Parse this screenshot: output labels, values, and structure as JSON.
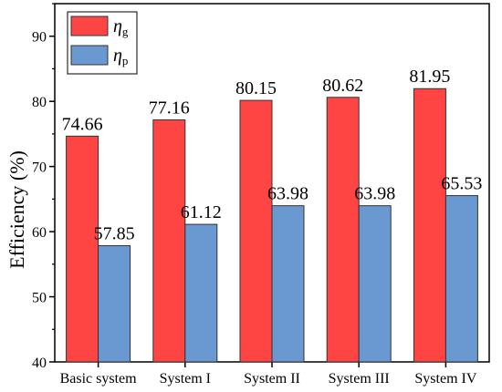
{
  "chart_data": {
    "type": "bar",
    "categories": [
      "Basic system",
      "System I",
      "System II",
      "System III",
      "System IV"
    ],
    "series": [
      {
        "name": "ηg",
        "symbol": "η",
        "subscript": "g",
        "color": "#ff4444",
        "values": [
          74.66,
          77.16,
          80.15,
          80.62,
          81.95
        ],
        "labels": [
          "74.66",
          "77.16",
          "80.15",
          "80.62",
          "81.95"
        ]
      },
      {
        "name": "ηp",
        "symbol": "η",
        "subscript": "p",
        "color": "#6a98d0",
        "values": [
          57.85,
          61.12,
          63.98,
          63.98,
          65.53
        ],
        "labels": [
          "57.85",
          "61.12",
          "63.98",
          "63.98",
          "65.53"
        ]
      }
    ],
    "ylabel": "Efficiency (%)",
    "ylim": [
      40,
      95
    ],
    "yticks": [
      "40",
      "50",
      "60",
      "70",
      "80",
      "90"
    ],
    "legend_position": "top-left",
    "grid": false
  }
}
